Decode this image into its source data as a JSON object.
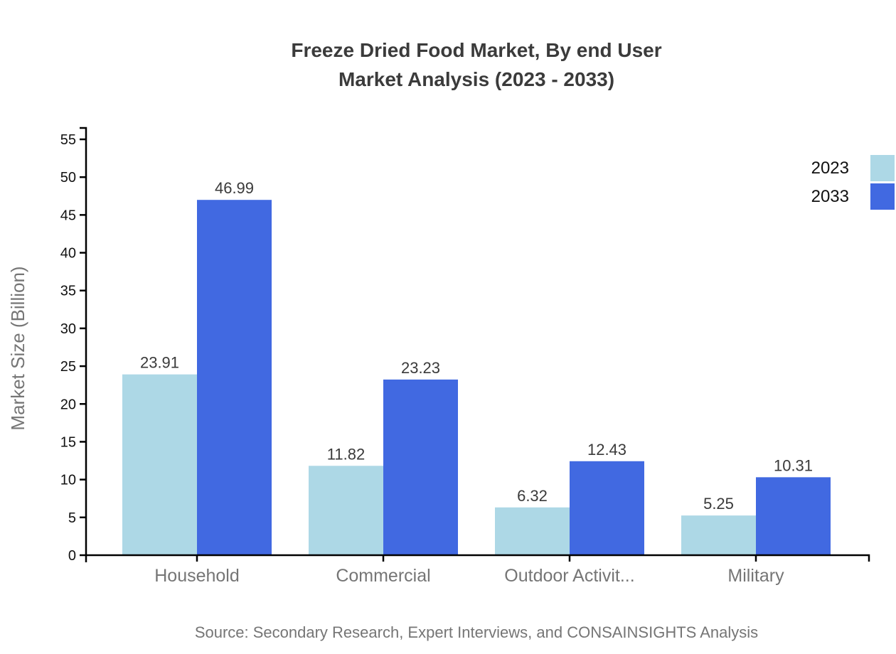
{
  "title": {
    "line1": "Freeze Dried Food Market, By end User",
    "line2": "Market Analysis (2023 - 2033)"
  },
  "source": "Source: Secondary Research, Expert Interviews, and CONSAINSIGHTS Analysis",
  "chart_data": {
    "type": "bar",
    "categories": [
      "Household",
      "Commercial",
      "Outdoor Activit...",
      "Military"
    ],
    "series": [
      {
        "name": "2023",
        "color": "#ADD8E6",
        "values": [
          23.91,
          11.82,
          6.32,
          5.25
        ]
      },
      {
        "name": "2033",
        "color": "#4169E1",
        "values": [
          46.99,
          23.23,
          12.43,
          10.31
        ]
      }
    ],
    "title": "Freeze Dried Food Market, By end User Market Analysis (2023 - 2033)",
    "xlabel": "",
    "ylabel": "Market Size (Billion)",
    "ylim": [
      0,
      55
    ],
    "ytick_step": 5,
    "yticks": [
      0,
      5,
      10,
      15,
      20,
      25,
      30,
      35,
      40,
      45,
      50,
      55
    ],
    "grid": false,
    "legend_position": "top-right",
    "value_labels": true,
    "colors": {
      "axis": "#000000",
      "tick_label": "#111111",
      "category_label": "#757575",
      "value_label": "#3a3a3a",
      "title_text": "#3b3b3b",
      "source_text": "#757575"
    }
  }
}
